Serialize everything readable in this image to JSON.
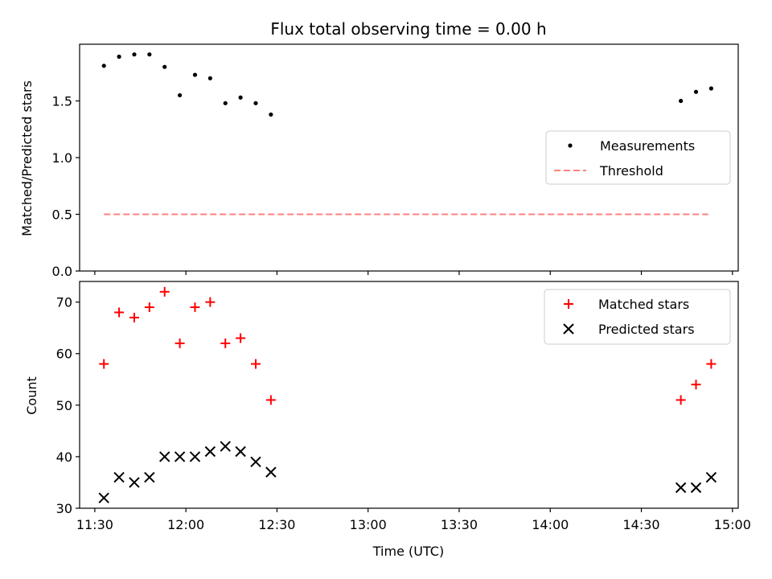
{
  "chart_data": [
    {
      "type": "scatter",
      "title": "Flux total observing time = 0.00 h",
      "xlabel": "",
      "ylabel": "Matched/Predicted stars",
      "ylim": [
        0,
        2.0
      ],
      "yticks": [
        "0.0",
        "0.5",
        "1.0",
        "1.5"
      ],
      "legend_position": "center-right",
      "series": [
        {
          "name": "Measurements",
          "marker": "dot",
          "color": "#000000",
          "x": [
            "11:33",
            "11:38",
            "11:43",
            "11:48",
            "11:53",
            "11:58",
            "12:03",
            "12:08",
            "12:13",
            "12:18",
            "12:23",
            "12:28",
            "14:43",
            "14:48",
            "14:53"
          ],
          "y": [
            1.81,
            1.89,
            1.91,
            1.91,
            1.8,
            1.55,
            1.73,
            1.7,
            1.48,
            1.53,
            1.48,
            1.38,
            1.5,
            1.58,
            1.61
          ]
        },
        {
          "name": "Threshold",
          "marker": "dashed-line",
          "color": "#ff7f7f",
          "x": [
            "11:33",
            "14:52"
          ],
          "y": [
            0.5,
            0.5
          ]
        }
      ]
    },
    {
      "type": "scatter",
      "title": "",
      "xlabel": "Time (UTC)",
      "ylabel": "Count",
      "ylim": [
        30,
        74
      ],
      "yticks": [
        "30",
        "40",
        "50",
        "60",
        "70"
      ],
      "xticks": [
        "11:30",
        "12:00",
        "12:30",
        "13:00",
        "13:30",
        "14:00",
        "14:30",
        "15:00"
      ],
      "legend_position": "top-right",
      "series": [
        {
          "name": "Matched stars",
          "marker": "plus",
          "color": "#ff0000",
          "x": [
            "11:33",
            "11:38",
            "11:43",
            "11:48",
            "11:53",
            "11:58",
            "12:03",
            "12:08",
            "12:13",
            "12:18",
            "12:23",
            "12:28",
            "14:43",
            "14:48",
            "14:53"
          ],
          "y": [
            58,
            68,
            67,
            69,
            72,
            62,
            69,
            70,
            62,
            63,
            58,
            51,
            51,
            54,
            58
          ]
        },
        {
          "name": "Predicted stars",
          "marker": "x",
          "color": "#000000",
          "x": [
            "11:33",
            "11:38",
            "11:43",
            "11:48",
            "11:53",
            "11:58",
            "12:03",
            "12:08",
            "12:13",
            "12:18",
            "12:23",
            "12:28",
            "14:43",
            "14:48",
            "14:53"
          ],
          "y": [
            32,
            36,
            35,
            36,
            40,
            40,
            40,
            41,
            42,
            41,
            39,
            37,
            34,
            34,
            36
          ]
        }
      ]
    }
  ]
}
